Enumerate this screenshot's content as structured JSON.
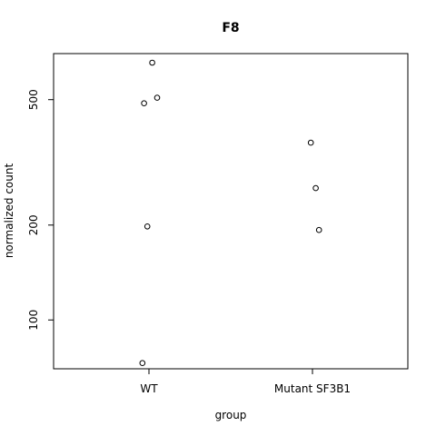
{
  "chart_data": {
    "type": "scatter",
    "title": "F8",
    "xlabel": "group",
    "ylabel": "normalized count",
    "y_scale": "log",
    "categories": [
      "WT",
      "Mutant SF3B1"
    ],
    "y_ticks": [
      100,
      200,
      500
    ],
    "y_tick_labels": [
      "100",
      "200",
      "500"
    ],
    "ylim": [
      70,
      700
    ],
    "grid": false,
    "points": [
      {
        "group": "WT",
        "jitter": 0.02,
        "y": 655
      },
      {
        "group": "WT",
        "jitter": 0.05,
        "y": 507
      },
      {
        "group": "WT",
        "jitter": -0.03,
        "y": 487
      },
      {
        "group": "WT",
        "jitter": -0.01,
        "y": 198
      },
      {
        "group": "WT",
        "jitter": -0.04,
        "y": 73
      },
      {
        "group": "Mutant SF3B1",
        "jitter": -0.01,
        "y": 365
      },
      {
        "group": "Mutant SF3B1",
        "jitter": 0.02,
        "y": 262
      },
      {
        "group": "Mutant SF3B1",
        "jitter": 0.04,
        "y": 193
      }
    ]
  }
}
